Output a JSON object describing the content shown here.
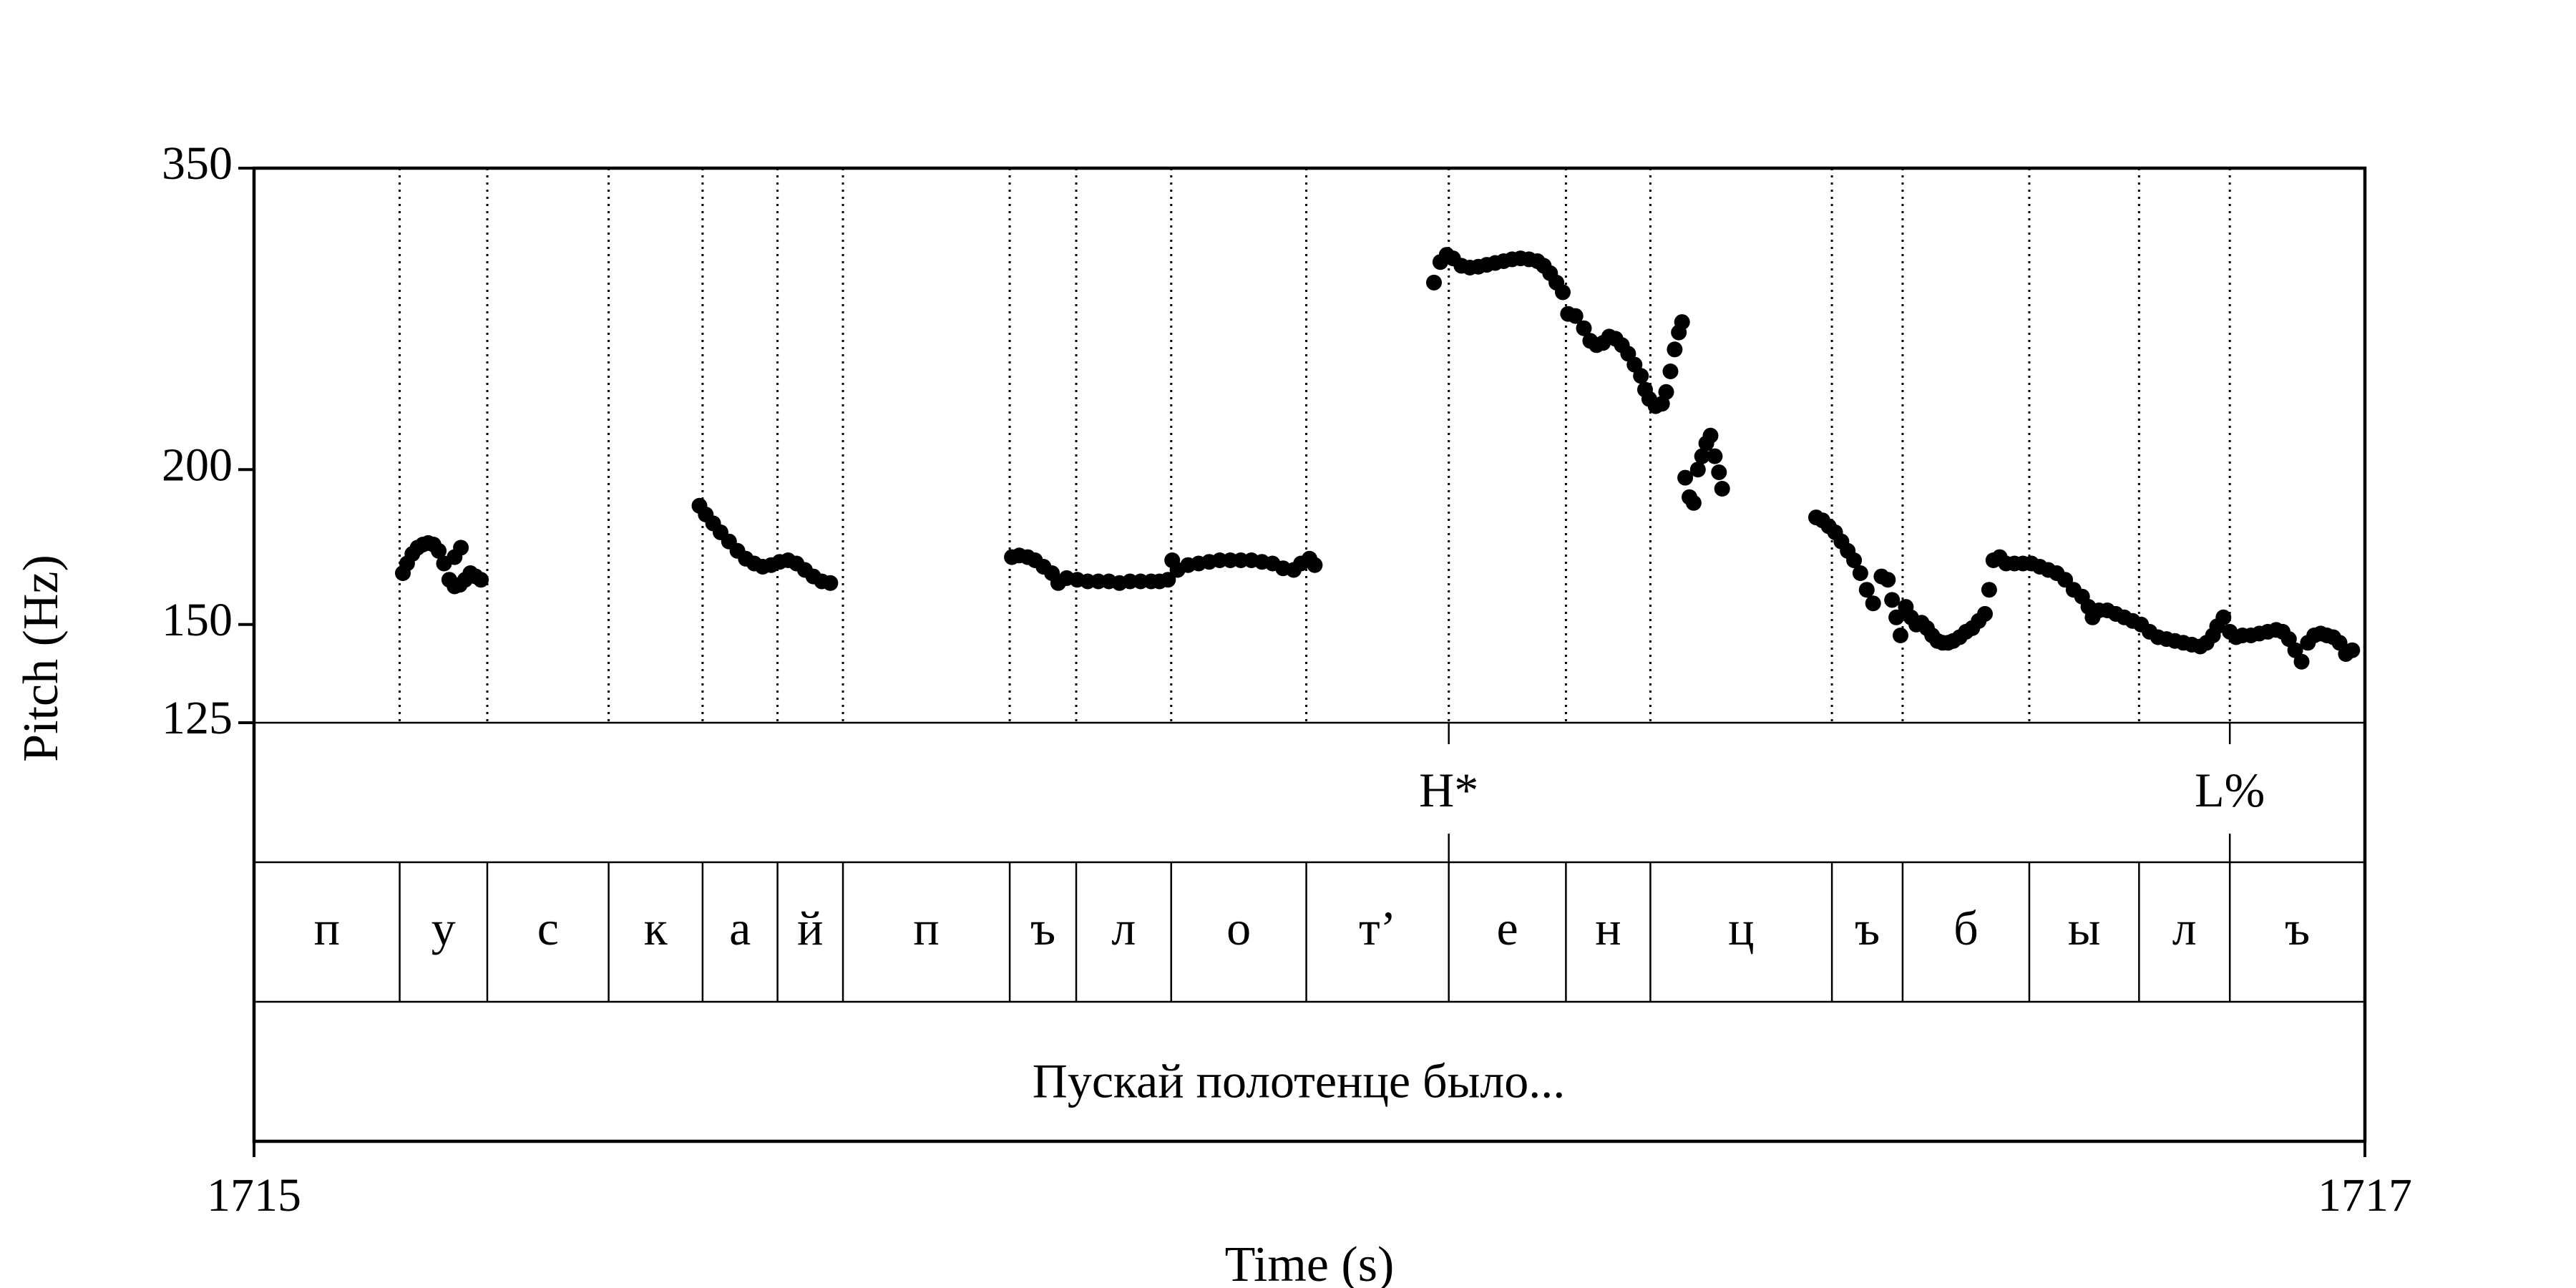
{
  "chart_data": {
    "type": "scatter",
    "title": "",
    "xlabel": "Time (s)",
    "ylabel": "Pitch (Hz)",
    "xlim": [
      1715,
      1717
    ],
    "ylim": [
      125,
      350
    ],
    "y_scale": "log",
    "x_ticks": [
      "1715",
      "1717"
    ],
    "y_ticks": [
      125,
      150,
      200,
      350
    ],
    "grid": false,
    "segment_boundaries": [
      1715.138,
      1715.221,
      1715.336,
      1715.425,
      1715.496,
      1715.558,
      1715.716,
      1715.779,
      1715.869,
      1715.997,
      1716.132,
      1716.243,
      1716.323,
      1716.495,
      1716.562,
      1716.682,
      1716.786,
      1716.872
    ],
    "segments": [
      {
        "label": "п",
        "start": 1715.0,
        "end": 1715.138
      },
      {
        "label": "у",
        "start": 1715.138,
        "end": 1715.221
      },
      {
        "label": "с",
        "start": 1715.221,
        "end": 1715.336
      },
      {
        "label": "к",
        "start": 1715.336,
        "end": 1715.425
      },
      {
        "label": "а",
        "start": 1715.425,
        "end": 1715.496
      },
      {
        "label": "й",
        "start": 1715.496,
        "end": 1715.558
      },
      {
        "label": "п",
        "start": 1715.558,
        "end": 1715.716
      },
      {
        "label": "ъ",
        "start": 1715.716,
        "end": 1715.779
      },
      {
        "label": "л",
        "start": 1715.779,
        "end": 1715.869
      },
      {
        "label": "о",
        "start": 1715.869,
        "end": 1715.997
      },
      {
        "label": "т’",
        "start": 1715.997,
        "end": 1716.132
      },
      {
        "label": "е",
        "start": 1716.132,
        "end": 1716.243
      },
      {
        "label": "н",
        "start": 1716.243,
        "end": 1716.323
      },
      {
        "label": "ц",
        "start": 1716.323,
        "end": 1716.495
      },
      {
        "label": "ъ",
        "start": 1716.495,
        "end": 1716.562
      },
      {
        "label": "б",
        "start": 1716.562,
        "end": 1716.682
      },
      {
        "label": "ы",
        "start": 1716.682,
        "end": 1716.786
      },
      {
        "label": "л",
        "start": 1716.786,
        "end": 1716.872
      },
      {
        "label": "ъ",
        "start": 1716.872,
        "end": 1717.0
      }
    ],
    "tones": [
      {
        "label": "H*",
        "time": 1716.132
      },
      {
        "label": "L%",
        "time": 1716.872
      }
    ],
    "sentence": "Пускай полотенце было...",
    "pitch_contours": [
      [
        [
          1715.141,
          165
        ],
        [
          1715.145,
          168
        ],
        [
          1715.15,
          171
        ],
        [
          1715.155,
          173
        ],
        [
          1715.16,
          174
        ],
        [
          1715.165,
          174.5
        ],
        [
          1715.17,
          174
        ],
        [
          1715.175,
          172
        ],
        [
          1715.18,
          168
        ],
        [
          1715.185,
          163
        ],
        [
          1715.19,
          161
        ],
        [
          1715.195,
          161.5
        ],
        [
          1715.2,
          163
        ],
        [
          1715.205,
          165
        ],
        [
          1715.21,
          164
        ],
        [
          1715.215,
          163
        ],
        [
          1715.196,
          173
        ],
        [
          1715.19,
          170
        ]
      ],
      [
        [
          1715.422,
          187
        ],
        [
          1715.428,
          184
        ],
        [
          1715.435,
          181
        ],
        [
          1715.442,
          178
        ],
        [
          1715.45,
          175
        ],
        [
          1715.458,
          172
        ],
        [
          1715.466,
          169.5
        ],
        [
          1715.474,
          168
        ],
        [
          1715.482,
          167
        ],
        [
          1715.49,
          167.5
        ],
        [
          1715.498,
          168.5
        ],
        [
          1715.506,
          169
        ],
        [
          1715.514,
          168
        ],
        [
          1715.522,
          166
        ],
        [
          1715.53,
          164
        ],
        [
          1715.538,
          162.5
        ],
        [
          1715.546,
          162
        ]
      ],
      [
        [
          1715.718,
          170
        ],
        [
          1715.725,
          170.5
        ],
        [
          1715.733,
          170
        ],
        [
          1715.74,
          169
        ],
        [
          1715.748,
          167
        ],
        [
          1715.756,
          165
        ],
        [
          1715.762,
          162
        ],
        [
          1715.77,
          163.5
        ],
        [
          1715.78,
          163
        ],
        [
          1715.79,
          162.5
        ],
        [
          1715.8,
          162.5
        ],
        [
          1715.81,
          162.5
        ],
        [
          1715.82,
          162
        ],
        [
          1715.83,
          162.5
        ],
        [
          1715.84,
          162.5
        ],
        [
          1715.85,
          162.5
        ],
        [
          1715.858,
          162.5
        ],
        [
          1715.866,
          163
        ],
        [
          1715.87,
          169
        ],
        [
          1715.875,
          166
        ],
        [
          1715.885,
          167.5
        ],
        [
          1715.895,
          168
        ],
        [
          1715.905,
          168.5
        ],
        [
          1715.915,
          169
        ],
        [
          1715.925,
          169
        ],
        [
          1715.935,
          169
        ],
        [
          1715.945,
          169
        ],
        [
          1715.955,
          168.5
        ],
        [
          1715.965,
          168
        ],
        [
          1715.975,
          166.5
        ],
        [
          1715.985,
          166
        ],
        [
          1715.992,
          168
        ],
        [
          1716.0,
          169.5
        ],
        [
          1716.005,
          167.5
        ]
      ],
      [
        [
          1716.118,
          283
        ],
        [
          1716.124,
          294
        ],
        [
          1716.13,
          298
        ],
        [
          1716.136,
          296
        ],
        [
          1716.144,
          292
        ],
        [
          1716.152,
          291
        ],
        [
          1716.16,
          291.5
        ],
        [
          1716.168,
          292.5
        ],
        [
          1716.176,
          293.5
        ],
        [
          1716.184,
          294.5
        ],
        [
          1716.192,
          295.5
        ],
        [
          1716.2,
          296
        ],
        [
          1716.208,
          295.5
        ],
        [
          1716.216,
          294.5
        ],
        [
          1716.222,
          292
        ],
        [
          1716.228,
          288
        ],
        [
          1716.234,
          283
        ],
        [
          1716.24,
          278
        ],
        [
          1716.245,
          267
        ],
        [
          1716.252,
          266
        ],
        [
          1716.26,
          260
        ],
        [
          1716.266,
          254
        ],
        [
          1716.272,
          252
        ],
        [
          1716.278,
          253
        ],
        [
          1716.284,
          256
        ],
        [
          1716.29,
          255
        ],
        [
          1716.296,
          252
        ],
        [
          1716.302,
          248
        ],
        [
          1716.308,
          243
        ],
        [
          1716.314,
          238
        ],
        [
          1716.318,
          232
        ],
        [
          1716.322,
          228
        ],
        [
          1716.328,
          225
        ],
        [
          1716.334,
          226
        ],
        [
          1716.338,
          231
        ],
        [
          1716.342,
          240
        ],
        [
          1716.346,
          250
        ],
        [
          1716.35,
          258
        ],
        [
          1716.353,
          263
        ],
        [
          1716.356,
          197
        ],
        [
          1716.36,
          190
        ],
        [
          1716.364,
          188
        ],
        [
          1716.368,
          200
        ],
        [
          1716.372,
          205
        ],
        [
          1716.376,
          210
        ],
        [
          1716.38,
          213
        ],
        [
          1716.384,
          205
        ],
        [
          1716.388,
          199
        ],
        [
          1716.391,
          193
        ]
      ],
      [
        [
          1716.48,
          183
        ],
        [
          1716.486,
          182
        ],
        [
          1716.492,
          180
        ],
        [
          1716.498,
          178
        ],
        [
          1716.504,
          175
        ],
        [
          1716.51,
          172
        ],
        [
          1716.516,
          169
        ],
        [
          1716.522,
          165
        ],
        [
          1716.528,
          160
        ],
        [
          1716.534,
          156
        ],
        [
          1716.542,
          164
        ],
        [
          1716.548,
          163
        ],
        [
          1716.552,
          157
        ],
        [
          1716.556,
          152
        ],
        [
          1716.56,
          147
        ],
        [
          1716.565,
          155
        ],
        [
          1716.57,
          152
        ],
        [
          1716.575,
          150
        ],
        [
          1716.58,
          150.5
        ],
        [
          1716.585,
          149
        ],
        [
          1716.59,
          147
        ],
        [
          1716.595,
          145.5
        ],
        [
          1716.6,
          145
        ],
        [
          1716.605,
          145
        ],
        [
          1716.61,
          145.5
        ],
        [
          1716.616,
          146.5
        ],
        [
          1716.622,
          148
        ],
        [
          1716.628,
          149
        ],
        [
          1716.634,
          151
        ],
        [
          1716.64,
          153
        ],
        [
          1716.644,
          160
        ],
        [
          1716.648,
          169
        ],
        [
          1716.654,
          170
        ],
        [
          1716.66,
          168
        ],
        [
          1716.668,
          168
        ],
        [
          1716.676,
          168
        ],
        [
          1716.684,
          168
        ],
        [
          1716.692,
          167
        ],
        [
          1716.7,
          166
        ],
        [
          1716.708,
          165
        ],
        [
          1716.716,
          163
        ],
        [
          1716.724,
          160
        ],
        [
          1716.732,
          158
        ],
        [
          1716.738,
          155
        ],
        [
          1716.742,
          152
        ],
        [
          1716.748,
          154
        ],
        [
          1716.756,
          154
        ],
        [
          1716.764,
          153
        ],
        [
          1716.772,
          152
        ],
        [
          1716.78,
          151
        ],
        [
          1716.788,
          150
        ],
        [
          1716.796,
          148
        ],
        [
          1716.804,
          146.5
        ],
        [
          1716.812,
          146
        ],
        [
          1716.82,
          145.5
        ],
        [
          1716.828,
          145
        ],
        [
          1716.836,
          144.5
        ],
        [
          1716.844,
          144
        ],
        [
          1716.85,
          145
        ],
        [
          1716.856,
          147
        ],
        [
          1716.86,
          149.5
        ],
        [
          1716.866,
          152
        ],
        [
          1716.872,
          148
        ],
        [
          1716.878,
          146.5
        ],
        [
          1716.884,
          147
        ],
        [
          1716.892,
          147
        ],
        [
          1716.9,
          147.5
        ],
        [
          1716.908,
          148
        ],
        [
          1716.916,
          148.5
        ],
        [
          1716.922,
          148
        ],
        [
          1716.928,
          146
        ],
        [
          1716.934,
          143
        ],
        [
          1716.94,
          140
        ],
        [
          1716.946,
          145
        ],
        [
          1716.952,
          147
        ],
        [
          1716.958,
          147.5
        ],
        [
          1716.964,
          147
        ],
        [
          1716.97,
          146.5
        ],
        [
          1716.976,
          145
        ],
        [
          1716.982,
          142
        ],
        [
          1716.988,
          143
        ]
      ]
    ]
  }
}
